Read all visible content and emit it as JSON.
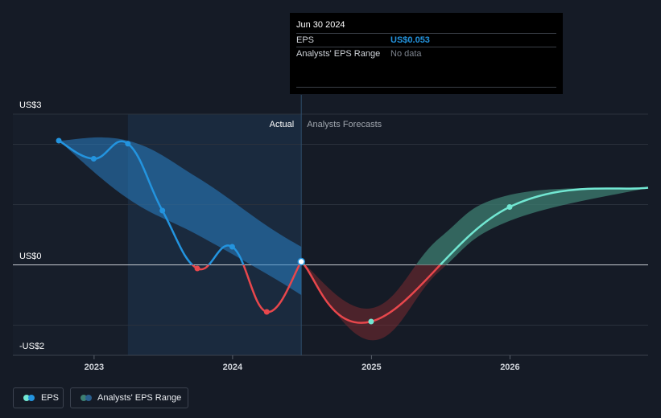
{
  "tooltip": {
    "date": "Jun 30 2024",
    "eps_label": "EPS",
    "eps_value": "US$0.053",
    "range_label": "Analysts' EPS Range",
    "range_value": "No data"
  },
  "legend": {
    "eps": "EPS",
    "range": "Analysts' EPS Range"
  },
  "colors": {
    "background": "#151b26",
    "actual_line": "#2394df",
    "forecast_line_negative": "#e8474c",
    "forecast_line_positive": "#72e7d2",
    "actual_range": "#2a7fc4",
    "forecast_range_positive": "#3d7f72",
    "forecast_range_negative": "#7a2a30",
    "past_shade": "#1a2a3e",
    "eps_value": "#2394df"
  },
  "chart_data": {
    "type": "line",
    "actual_label": "Actual",
    "forecast_label": "Analysts Forecasts",
    "y_tick_labels": [
      "US$3",
      "US$0",
      "-US$2"
    ],
    "x_tick_labels": [
      "2023",
      "2024",
      "2025",
      "2026"
    ],
    "ylim": [
      -1.5,
      2.5
    ],
    "x_domain": [
      "2022-06-01",
      "2026-12-31"
    ],
    "series": [
      {
        "name": "EPS",
        "kind": "actual",
        "points": [
          {
            "x": "2022-09-30",
            "y": 2.06
          },
          {
            "x": "2022-12-31",
            "y": 1.76
          },
          {
            "x": "2023-03-31",
            "y": 2.01
          },
          {
            "x": "2023-06-30",
            "y": 0.9
          },
          {
            "x": "2023-09-30",
            "y": -0.06
          },
          {
            "x": "2023-12-31",
            "y": 0.3
          },
          {
            "x": "2024-03-31",
            "y": -0.78
          },
          {
            "x": "2024-06-30",
            "y": 0.053
          }
        ]
      },
      {
        "name": "EPS",
        "kind": "forecast",
        "points": [
          {
            "x": "2024-06-30",
            "y": 0.053
          },
          {
            "x": "2024-12-31",
            "y": -0.94
          },
          {
            "x": "2025-12-31",
            "y": 0.96
          },
          {
            "x": "2026-12-31",
            "y": 1.28
          }
        ]
      }
    ],
    "actual_range": {
      "x": [
        "2022-09-30",
        "2023-03-31",
        "2023-09-30",
        "2024-03-31",
        "2024-06-30"
      ],
      "low": [
        2.06,
        1.1,
        0.5,
        -0.15,
        -0.5
      ],
      "high": [
        2.06,
        2.06,
        1.45,
        0.65,
        0.3
      ]
    },
    "forecast_range": {
      "x": [
        "2024-06-30",
        "2024-12-31",
        "2025-06-30",
        "2025-12-31",
        "2026-12-31"
      ],
      "low": [
        0.053,
        -1.25,
        -0.1,
        0.73,
        1.28
      ],
      "high": [
        0.053,
        -0.72,
        0.45,
        1.16,
        1.28
      ]
    }
  }
}
